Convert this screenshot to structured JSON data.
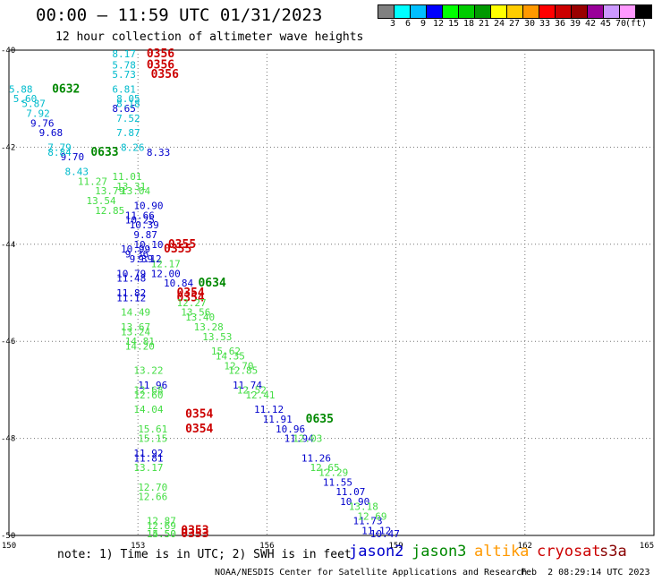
{
  "header": {
    "title": "00:00 – 11:59 UTC 01/31/2023",
    "subtitle": "12 hour collection of altimeter wave heights"
  },
  "colorbar": {
    "colors": [
      "#808080",
      "#00ffff",
      "#00bfff",
      "#0000ff",
      "#00ff00",
      "#00cc00",
      "#009900",
      "#ffff00",
      "#ffcc00",
      "#ff9900",
      "#ff0000",
      "#cc0000",
      "#990000",
      "#990099",
      "#cc99ff",
      "#ff99ff",
      "#000000"
    ],
    "labels": [
      "3",
      "6",
      "9",
      "12",
      "15",
      "18",
      "21",
      "24",
      "27",
      "30",
      "33",
      "36",
      "39",
      "42",
      "45",
      "70",
      "(ft)"
    ]
  },
  "note": "note: 1) Time is in UTC; 2) SWH is in feet",
  "legend": [
    {
      "label": "jason2",
      "color": "#0000cc"
    },
    {
      "label": "jason3",
      "color": "#008800"
    },
    {
      "label": "altika",
      "color": "#ff9900"
    },
    {
      "label": "cryosat",
      "color": "#cc0000"
    },
    {
      "label": "s3a",
      "color": "#880000"
    }
  ],
  "footer": {
    "credit": "NOAA/NESDIS Center for Satellite Applications and Research",
    "timestamp": "Feb  2 08:29:14 UTC 2023"
  },
  "chart_data": {
    "type": "scatter",
    "title": "00:00 – 11:59 UTC 01/31/2023",
    "xlabel": "",
    "ylabel": "",
    "xlim": [
      150,
      165
    ],
    "ylim": [
      -50,
      -40
    ],
    "x_ticks": [
      "150",
      "153",
      "156",
      "159",
      "162",
      "165"
    ],
    "y_ticks": [
      "-40",
      "-42",
      "-44",
      "-46",
      "-48",
      "-50"
    ],
    "grid": "dotted",
    "series": [
      {
        "name": "jason2",
        "color": "#0000cc",
        "points": [
          {
            "x": 153.2,
            "y": -42.1,
            "label": "8.33"
          },
          {
            "x": 152.9,
            "y": -43.2,
            "label": "10.90"
          },
          {
            "x": 152.7,
            "y": -43.4,
            "label": "11.66"
          },
          {
            "x": 152.9,
            "y": -44.0,
            "label": "10.10"
          },
          {
            "x": 152.6,
            "y": -44.1,
            "label": "10.99"
          },
          {
            "x": 152.5,
            "y": -44.6,
            "label": "10.79"
          },
          {
            "x": 152.5,
            "y": -44.7,
            "label": "11.48"
          },
          {
            "x": 153.3,
            "y": -44.6,
            "label": "12.00"
          },
          {
            "x": 153.6,
            "y": -44.8,
            "label": "10.84"
          },
          {
            "x": 152.5,
            "y": -45.0,
            "label": "11.82"
          },
          {
            "x": 152.5,
            "y": -45.1,
            "label": "11.12"
          },
          {
            "x": 155.2,
            "y": -46.9,
            "label": "11.74"
          },
          {
            "x": 155.7,
            "y": -47.4,
            "label": "11.12"
          },
          {
            "x": 155.9,
            "y": -47.6,
            "label": "11.91"
          },
          {
            "x": 156.2,
            "y": -47.8,
            "label": "10.96"
          },
          {
            "x": 156.4,
            "y": -48.0,
            "label": "11.94"
          },
          {
            "x": 156.8,
            "y": -48.4,
            "label": "11.26"
          },
          {
            "x": 157.3,
            "y": -48.9,
            "label": "11.55"
          },
          {
            "x": 157.6,
            "y": -49.1,
            "label": "11.07"
          },
          {
            "x": 157.7,
            "y": -49.3,
            "label": "10.90"
          },
          {
            "x": 158.0,
            "y": -49.7,
            "label": "11.73"
          },
          {
            "x": 158.2,
            "y": -49.9,
            "label": "11.12"
          },
          {
            "x": 158.4,
            "y": -50.0,
            "label": "10.47"
          },
          {
            "x": 152.9,
            "y": -48.3,
            "label": "11.92"
          },
          {
            "x": 152.9,
            "y": -48.4,
            "label": "11.81"
          },
          {
            "x": 153.0,
            "y": -46.9,
            "label": "11.96"
          },
          {
            "x": 150.5,
            "y": -41.5,
            "label": "9.76"
          },
          {
            "x": 150.7,
            "y": -41.7,
            "label": "9.68"
          },
          {
            "x": 151.2,
            "y": -42.2,
            "label": "9.70"
          },
          {
            "x": 152.4,
            "y": -41.2,
            "label": "8.65"
          }
        ]
      },
      {
        "name": "jason3",
        "color": "#008800",
        "points": [
          {
            "x": 151.0,
            "y": -40.8,
            "label": "0632"
          },
          {
            "x": 151.9,
            "y": -42.1,
            "label": "0633"
          },
          {
            "x": 154.4,
            "y": -44.8,
            "label": "0634"
          },
          {
            "x": 156.9,
            "y": -47.6,
            "label": "0635"
          }
        ]
      },
      {
        "name": "s3a",
        "color": "#cc0000",
        "points": [
          {
            "x": 153.2,
            "y": -40.0,
            "label": "0356"
          },
          {
            "x": 153.2,
            "y": -40.3,
            "label": "0356"
          },
          {
            "x": 153.3,
            "y": -40.5,
            "label": "0356"
          },
          {
            "x": 153.7,
            "y": -44.0,
            "label": "0355"
          },
          {
            "x": 153.6,
            "y": -44.1,
            "label": "0355"
          },
          {
            "x": 153.9,
            "y": -45.0,
            "label": "0354"
          },
          {
            "x": 153.9,
            "y": -45.1,
            "label": "0354"
          },
          {
            "x": 154.1,
            "y": -47.5,
            "label": "0354"
          },
          {
            "x": 154.1,
            "y": -47.8,
            "label": "0354"
          },
          {
            "x": 154.0,
            "y": -49.9,
            "label": "0353"
          },
          {
            "x": 154.0,
            "y": -50.0,
            "label": "0353"
          }
        ]
      },
      {
        "name": "cyan-track",
        "color": "#00bbcc",
        "points": [
          {
            "x": 152.4,
            "y": -40.0,
            "label": "8.17"
          },
          {
            "x": 152.4,
            "y": -40.3,
            "label": "5.78"
          },
          {
            "x": 152.4,
            "y": -40.5,
            "label": "5.73"
          },
          {
            "x": 152.4,
            "y": -40.8,
            "label": "6.81"
          },
          {
            "x": 152.5,
            "y": -41.0,
            "label": "8.05"
          },
          {
            "x": 152.5,
            "y": -41.1,
            "label": "8.18"
          },
          {
            "x": 152.5,
            "y": -41.4,
            "label": "7.52"
          },
          {
            "x": 152.5,
            "y": -41.7,
            "label": "7.87"
          },
          {
            "x": 152.6,
            "y": -42.0,
            "label": "8.26"
          },
          {
            "x": 150.0,
            "y": -40.8,
            "label": "5.88"
          },
          {
            "x": 150.1,
            "y": -41.0,
            "label": "5.60"
          },
          {
            "x": 150.3,
            "y": -41.1,
            "label": "5.87"
          },
          {
            "x": 150.4,
            "y": -41.3,
            "label": "7.92"
          },
          {
            "x": 150.9,
            "y": -42.0,
            "label": "7.79"
          },
          {
            "x": 150.9,
            "y": -42.1,
            "label": "8.84"
          },
          {
            "x": 151.3,
            "y": -42.5,
            "label": "8.43"
          }
        ]
      },
      {
        "name": "lime-track",
        "color": "#44dd44",
        "points": [
          {
            "x": 151.6,
            "y": -42.7,
            "label": "11.27"
          },
          {
            "x": 152.4,
            "y": -42.6,
            "label": "11.01"
          },
          {
            "x": 152.5,
            "y": -42.8,
            "label": "13.31"
          },
          {
            "x": 152.0,
            "y": -42.9,
            "label": "13.79"
          },
          {
            "x": 152.6,
            "y": -42.9,
            "label": "13.04"
          },
          {
            "x": 151.8,
            "y": -43.1,
            "label": "13.54"
          },
          {
            "x": 152.0,
            "y": -43.3,
            "label": "12.85"
          },
          {
            "x": 153.3,
            "y": -44.4,
            "label": "12.17"
          },
          {
            "x": 153.9,
            "y": -45.2,
            "label": "12.27"
          },
          {
            "x": 154.0,
            "y": -45.4,
            "label": "13.56"
          },
          {
            "x": 154.1,
            "y": -45.5,
            "label": "13.40"
          },
          {
            "x": 154.3,
            "y": -45.7,
            "label": "13.28"
          },
          {
            "x": 154.5,
            "y": -45.9,
            "label": "13.53"
          },
          {
            "x": 154.7,
            "y": -46.2,
            "label": "15.62"
          },
          {
            "x": 154.8,
            "y": -46.3,
            "label": "14.35"
          },
          {
            "x": 155.0,
            "y": -46.5,
            "label": "12.70"
          },
          {
            "x": 155.1,
            "y": -46.6,
            "label": "12.85"
          },
          {
            "x": 155.3,
            "y": -47.0,
            "label": "12.52"
          },
          {
            "x": 155.5,
            "y": -47.1,
            "label": "12.41"
          },
          {
            "x": 156.6,
            "y": -48.0,
            "label": "12.03"
          },
          {
            "x": 157.0,
            "y": -48.6,
            "label": "12.65"
          },
          {
            "x": 157.2,
            "y": -48.7,
            "label": "12.29"
          },
          {
            "x": 157.9,
            "y": -49.4,
            "label": "13.18"
          },
          {
            "x": 158.1,
            "y": -49.6,
            "label": "12.69"
          },
          {
            "x": 152.6,
            "y": -45.4,
            "label": "14.49"
          },
          {
            "x": 152.6,
            "y": -45.7,
            "label": "13.67"
          },
          {
            "x": 152.6,
            "y": -45.8,
            "label": "13.24"
          },
          {
            "x": 152.7,
            "y": -46.0,
            "label": "14.81"
          },
          {
            "x": 152.7,
            "y": -46.1,
            "label": "14.20"
          },
          {
            "x": 152.9,
            "y": -46.6,
            "label": "13.22"
          },
          {
            "x": 152.9,
            "y": -47.0,
            "label": "12.68"
          },
          {
            "x": 152.9,
            "y": -47.1,
            "label": "12.60"
          },
          {
            "x": 152.9,
            "y": -47.4,
            "label": "14.04"
          },
          {
            "x": 153.0,
            "y": -47.8,
            "label": "15.61"
          },
          {
            "x": 153.0,
            "y": -48.0,
            "label": "15.15"
          },
          {
            "x": 152.9,
            "y": -48.6,
            "label": "13.17"
          },
          {
            "x": 153.0,
            "y": -49.0,
            "label": "12.70"
          },
          {
            "x": 153.0,
            "y": -49.2,
            "label": "12.66"
          },
          {
            "x": 153.2,
            "y": -49.7,
            "label": "12.87"
          },
          {
            "x": 153.2,
            "y": -49.8,
            "label": "12.69"
          },
          {
            "x": 153.2,
            "y": -50.0,
            "label": "14.50"
          },
          {
            "x": 153.2,
            "y": -50.0,
            "label": "15.50"
          }
        ]
      },
      {
        "name": "cyan-blue-mix",
        "color": "#0000cc",
        "points": [
          {
            "x": 152.7,
            "y": -43.5,
            "label": "10.25"
          },
          {
            "x": 152.8,
            "y": -43.6,
            "label": "10.39"
          },
          {
            "x": 152.9,
            "y": -43.8,
            "label": "9.87"
          },
          {
            "x": 152.7,
            "y": -44.2,
            "label": "9.36"
          },
          {
            "x": 152.8,
            "y": -44.3,
            "label": "9.39"
          },
          {
            "x": 153.0,
            "y": -44.3,
            "label": "9.12"
          }
        ]
      }
    ]
  }
}
